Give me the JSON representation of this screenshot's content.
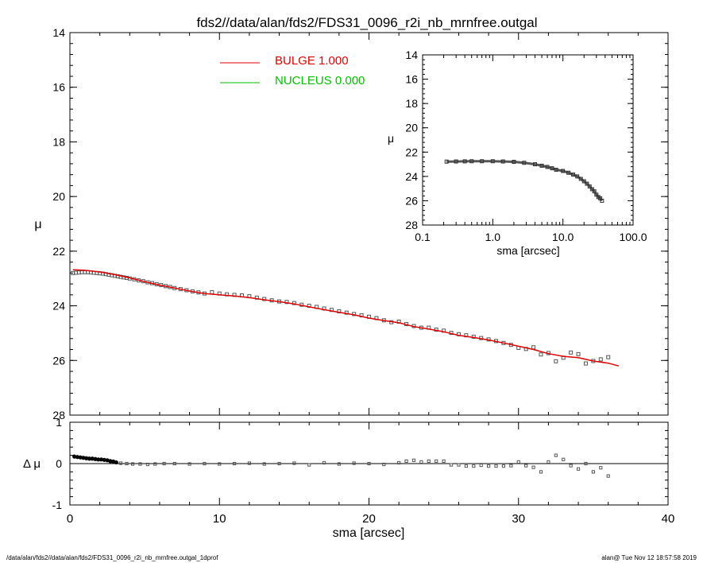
{
  "title": "fds2//data/alan/fds2/FDS31_0096_r2i_nb_mrnfree.outgal",
  "footer": {
    "left": "/data/alan/fds2//data/alan/fds2/FDS31_0096_r2i_nb_mrnfree.outgal_1dprof",
    "right": "alan@  Tue Nov 12 18:57:58 2019"
  },
  "colors": {
    "bulge": "#e00000",
    "nucleus": "#00c000",
    "data": "#555555"
  },
  "legend": [
    {
      "label": "BULGE  1.000",
      "color": "#e00000"
    },
    {
      "label": "NUCLEUS  0.000",
      "color": "#00c000"
    }
  ],
  "chart_data": [
    {
      "type": "scatter",
      "panel": "main",
      "xlabel": "",
      "ylabel": "μ",
      "xlim": [
        0,
        40
      ],
      "ylim": [
        28,
        14
      ],
      "y_inverted": true,
      "yticks": [
        "14",
        "16",
        "18",
        "20",
        "22",
        "24",
        "26",
        "28"
      ],
      "observed_points": [
        [
          0.2,
          22.8
        ],
        [
          0.4,
          22.79
        ],
        [
          0.6,
          22.78
        ],
        [
          0.8,
          22.77
        ],
        [
          1.0,
          22.77
        ],
        [
          1.2,
          22.77
        ],
        [
          1.4,
          22.78
        ],
        [
          1.6,
          22.79
        ],
        [
          1.8,
          22.8
        ],
        [
          2.0,
          22.81
        ],
        [
          2.2,
          22.82
        ],
        [
          2.4,
          22.84
        ],
        [
          2.6,
          22.86
        ],
        [
          2.8,
          22.88
        ],
        [
          3.0,
          22.9
        ],
        [
          3.2,
          22.92
        ],
        [
          3.4,
          22.94
        ],
        [
          3.6,
          22.96
        ],
        [
          3.8,
          22.98
        ],
        [
          4.0,
          23.0
        ],
        [
          4.3,
          23.03
        ],
        [
          4.6,
          23.07
        ],
        [
          4.9,
          23.1
        ],
        [
          5.2,
          23.14
        ],
        [
          5.5,
          23.17
        ],
        [
          5.8,
          23.21
        ],
        [
          6.1,
          23.24
        ],
        [
          6.4,
          23.28
        ],
        [
          6.7,
          23.31
        ],
        [
          7.0,
          23.35
        ],
        [
          7.4,
          23.39
        ],
        [
          7.8,
          23.43
        ],
        [
          8.2,
          23.47
        ],
        [
          8.6,
          23.51
        ],
        [
          9.0,
          23.55
        ],
        [
          9.5,
          23.5
        ],
        [
          10.0,
          23.55
        ],
        [
          10.5,
          23.58
        ],
        [
          11.0,
          23.6
        ],
        [
          11.5,
          23.62
        ],
        [
          12.0,
          23.65
        ],
        [
          12.5,
          23.7
        ],
        [
          13.0,
          23.75
        ],
        [
          13.5,
          23.8
        ],
        [
          14.0,
          23.84
        ],
        [
          14.5,
          23.86
        ],
        [
          15.0,
          23.9
        ],
        [
          15.5,
          23.96
        ],
        [
          16.0,
          24.0
        ],
        [
          16.5,
          24.04
        ],
        [
          17.0,
          24.1
        ],
        [
          17.5,
          24.15
        ],
        [
          18.0,
          24.2
        ],
        [
          18.5,
          24.25
        ],
        [
          19.0,
          24.3
        ],
        [
          19.5,
          24.35
        ],
        [
          20.0,
          24.4
        ],
        [
          20.5,
          24.45
        ],
        [
          21.0,
          24.53
        ],
        [
          21.5,
          24.6
        ],
        [
          22.0,
          24.58
        ],
        [
          22.5,
          24.67
        ],
        [
          23.0,
          24.74
        ],
        [
          23.5,
          24.8
        ],
        [
          24.0,
          24.8
        ],
        [
          24.5,
          24.87
        ],
        [
          25.0,
          24.91
        ],
        [
          25.5,
          24.99
        ],
        [
          26.0,
          25.04
        ],
        [
          26.5,
          25.08
        ],
        [
          27.0,
          25.13
        ],
        [
          27.5,
          25.18
        ],
        [
          28.0,
          25.23
        ],
        [
          28.5,
          25.29
        ],
        [
          29.0,
          25.36
        ],
        [
          29.5,
          25.43
        ],
        [
          30.0,
          25.54
        ],
        [
          30.5,
          25.58
        ],
        [
          31.0,
          25.52
        ],
        [
          31.5,
          25.78
        ],
        [
          32.0,
          25.73
        ],
        [
          32.5,
          26.03
        ],
        [
          33.0,
          25.9
        ],
        [
          33.5,
          25.71
        ],
        [
          34.0,
          25.77
        ],
        [
          34.5,
          26.11
        ],
        [
          35.0,
          26.02
        ],
        [
          35.5,
          25.96
        ],
        [
          36.0,
          25.88
        ]
      ],
      "series": [
        {
          "name": "BULGE  1.000",
          "color": "#e00000",
          "points": [
            [
              0.2,
              22.68
            ],
            [
              1.0,
              22.7
            ],
            [
              2.0,
              22.76
            ],
            [
              3.0,
              22.86
            ],
            [
              4.0,
              22.98
            ],
            [
              5.0,
              23.12
            ],
            [
              6.0,
              23.24
            ],
            [
              7.0,
              23.35
            ],
            [
              8.0,
              23.46
            ],
            [
              9.0,
              23.55
            ],
            [
              10.0,
              23.6
            ],
            [
              11.0,
              23.64
            ],
            [
              12.0,
              23.7
            ],
            [
              13.0,
              23.78
            ],
            [
              14.0,
              23.85
            ],
            [
              15.0,
              23.93
            ],
            [
              16.0,
              24.04
            ],
            [
              17.0,
              24.14
            ],
            [
              18.0,
              24.24
            ],
            [
              19.0,
              24.33
            ],
            [
              20.0,
              24.45
            ],
            [
              21.0,
              24.54
            ],
            [
              22.0,
              24.62
            ],
            [
              23.0,
              24.76
            ],
            [
              24.0,
              24.85
            ],
            [
              25.0,
              24.95
            ],
            [
              26.0,
              25.08
            ],
            [
              27.0,
              25.16
            ],
            [
              28.0,
              25.25
            ],
            [
              29.0,
              25.36
            ],
            [
              30.0,
              25.48
            ],
            [
              31.0,
              25.6
            ],
            [
              32.0,
              25.75
            ],
            [
              33.0,
              25.85
            ],
            [
              34.0,
              25.9
            ],
            [
              35.0,
              26.02
            ],
            [
              36.0,
              26.1
            ],
            [
              36.7,
              26.2
            ]
          ]
        }
      ]
    },
    {
      "type": "scatter",
      "panel": "residual",
      "xlabel": "sma [arcsec]",
      "ylabel": "Δ μ",
      "xlim": [
        0,
        40
      ],
      "ylim": [
        -1,
        1
      ],
      "xticks": [
        "0",
        "10",
        "20",
        "30",
        "40"
      ],
      "yticks": [
        "1",
        "0",
        "-1"
      ],
      "points": [
        [
          0.3,
          0.17
        ],
        [
          0.5,
          0.16
        ],
        [
          0.7,
          0.15
        ],
        [
          0.9,
          0.14
        ],
        [
          1.1,
          0.13
        ],
        [
          1.3,
          0.12
        ],
        [
          1.5,
          0.12
        ],
        [
          1.7,
          0.11
        ],
        [
          1.9,
          0.1
        ],
        [
          2.1,
          0.1
        ],
        [
          2.3,
          0.09
        ],
        [
          2.5,
          0.08
        ],
        [
          2.7,
          0.06
        ],
        [
          2.9,
          0.05
        ],
        [
          3.1,
          0.03
        ],
        [
          3.4,
          0.01
        ],
        [
          3.8,
          0.0
        ],
        [
          4.2,
          -0.01
        ],
        [
          4.7,
          -0.01
        ],
        [
          5.2,
          -0.02
        ],
        [
          5.7,
          -0.01
        ],
        [
          6.3,
          0.0
        ],
        [
          7.0,
          0.0
        ],
        [
          8.0,
          -0.01
        ],
        [
          9.0,
          0.0
        ],
        [
          10.0,
          -0.01
        ],
        [
          11.0,
          0.0
        ],
        [
          12.0,
          0.01
        ],
        [
          13.0,
          -0.01
        ],
        [
          14.0,
          0.0
        ],
        [
          15.0,
          0.01
        ],
        [
          16.0,
          -0.03
        ],
        [
          17.0,
          0.02
        ],
        [
          18.0,
          -0.01
        ],
        [
          19.0,
          0.01
        ],
        [
          20.0,
          0.0
        ],
        [
          21.0,
          -0.02
        ],
        [
          22.0,
          0.02
        ],
        [
          22.5,
          0.06
        ],
        [
          23.0,
          0.08
        ],
        [
          23.5,
          0.04
        ],
        [
          24.0,
          0.06
        ],
        [
          24.5,
          0.06
        ],
        [
          25.0,
          0.06
        ],
        [
          25.5,
          -0.03
        ],
        [
          26.0,
          -0.03
        ],
        [
          26.5,
          -0.06
        ],
        [
          27.0,
          -0.06
        ],
        [
          27.5,
          -0.04
        ],
        [
          28.0,
          -0.06
        ],
        [
          28.5,
          -0.06
        ],
        [
          29.0,
          -0.06
        ],
        [
          29.5,
          -0.05
        ],
        [
          30.0,
          0.04
        ],
        [
          30.5,
          -0.05
        ],
        [
          31.0,
          -0.09
        ],
        [
          31.5,
          -0.2
        ],
        [
          32.0,
          0.04
        ],
        [
          32.5,
          0.2
        ],
        [
          33.0,
          0.1
        ],
        [
          33.5,
          -0.05
        ],
        [
          34.0,
          -0.13
        ],
        [
          34.5,
          0.0
        ],
        [
          35.0,
          -0.2
        ],
        [
          35.5,
          -0.1
        ],
        [
          36.0,
          -0.3
        ]
      ]
    },
    {
      "type": "scatter",
      "panel": "inset",
      "x_log": true,
      "xlabel": "sma [arcsec]",
      "ylabel": "μ",
      "xlim": [
        0.1,
        100
      ],
      "ylim": [
        28,
        14
      ],
      "y_inverted": true,
      "xticks": [
        "0.1",
        "1.0",
        "10.0",
        "100.0"
      ],
      "yticks": [
        "14",
        "16",
        "18",
        "20",
        "22",
        "24",
        "26",
        "28"
      ],
      "points": [
        [
          0.22,
          22.78
        ],
        [
          0.3,
          22.77
        ],
        [
          0.4,
          22.76
        ],
        [
          0.5,
          22.75
        ],
        [
          0.7,
          22.75
        ],
        [
          1.0,
          22.75
        ],
        [
          1.4,
          22.77
        ],
        [
          2.0,
          22.8
        ],
        [
          2.8,
          22.88
        ],
        [
          4.0,
          23.0
        ],
        [
          5.0,
          23.12
        ],
        [
          6.0,
          23.22
        ],
        [
          7.0,
          23.33
        ],
        [
          8.0,
          23.45
        ],
        [
          10.0,
          23.55
        ],
        [
          12.0,
          23.7
        ],
        [
          14.0,
          23.85
        ],
        [
          16.0,
          24.0
        ],
        [
          18.0,
          24.2
        ],
        [
          20.0,
          24.4
        ],
        [
          22.0,
          24.6
        ],
        [
          24.0,
          24.82
        ],
        [
          26.0,
          25.05
        ],
        [
          28.0,
          25.23
        ],
        [
          30.0,
          25.5
        ],
        [
          32.0,
          25.7
        ],
        [
          34.0,
          25.8
        ],
        [
          36.0,
          26.0
        ]
      ]
    }
  ]
}
